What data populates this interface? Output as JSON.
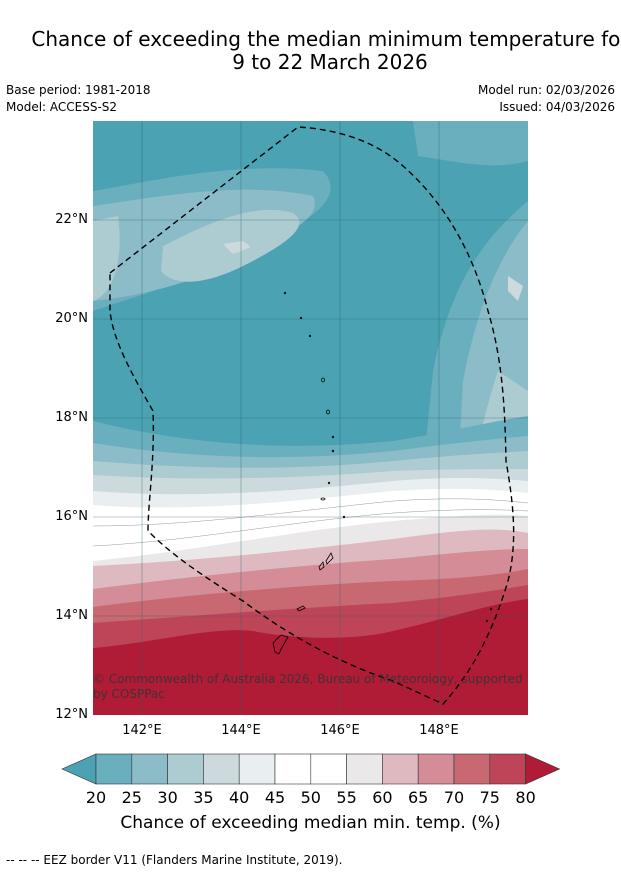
{
  "title": {
    "line1": "Chance of exceeding the median minimum temperature for",
    "line2": "9 to 22 March 2026"
  },
  "meta": {
    "base_period": "Base period: 1981-2018",
    "model": "Model: ACCESS-S2",
    "model_run": "Model run: 02/03/2026",
    "issued": "Issued: 04/03/2026"
  },
  "map": {
    "lat_labels": [
      "22°N",
      "20°N",
      "18°N",
      "16°N",
      "14°N",
      "12°N"
    ],
    "lon_labels": [
      "142°E",
      "144°E",
      "146°E",
      "148°E"
    ],
    "copyright_line1": "© Commonwealth of Australia 2026, Bureau of Meteorology, supported",
    "copyright_line2": "by COSPPac"
  },
  "colorbar": {
    "ticks": [
      "20",
      "25",
      "30",
      "35",
      "40",
      "45",
      "50",
      "55",
      "60",
      "65",
      "70",
      "75",
      "80"
    ],
    "colors": [
      "#4aa2b3",
      "#6aafbd",
      "#8bbcc7",
      "#acccd2",
      "#cddadd",
      "#e9eff1",
      "#ffffff",
      "#ffffff",
      "#ebe8ea",
      "#dfb9c0",
      "#d48c97",
      "#c86870",
      "#be4558",
      "#b01c36"
    ],
    "label": "Chance of exceeding median min. temp. (%)"
  },
  "footer": {
    "legend": "--  --  -- EEZ border V11 (Flanders Marine Institute, 2019)."
  }
}
